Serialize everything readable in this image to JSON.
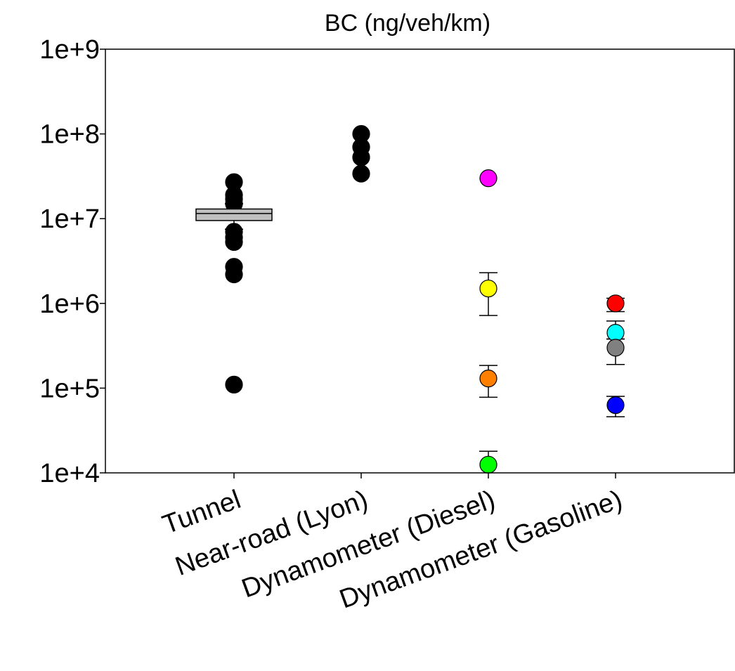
{
  "chart_data": {
    "type": "scatter",
    "title": "BC (ng/veh/km)",
    "xlabel": "",
    "ylabel": "",
    "y_scale": "log",
    "ylim": [
      10000,
      1000000000
    ],
    "y_tick_values": [
      10000,
      100000,
      1000000,
      10000000,
      100000000,
      1000000000
    ],
    "y_tick_labels": [
      "1e+4",
      "1e+5",
      "1e+6",
      "1e+7",
      "1e+8",
      "1e+9"
    ],
    "categories": [
      "Tunnel",
      "Near-road (Lyon)",
      "Dynamometer (Diesel)",
      "Dynamometer (Gasoline)"
    ],
    "grid": false,
    "legend": "none",
    "series": [
      {
        "category": "Tunnel",
        "color": "#000000",
        "values": [
          27000000,
          19000000,
          17000000,
          15000000,
          7000000,
          6000000,
          5300000,
          2700000,
          2200000,
          110000
        ]
      },
      {
        "category": "Tunnel",
        "type": "box",
        "color": "#c0c0c0",
        "q1": 9500000,
        "median": 11500000,
        "q3": 13000000,
        "whisker_low": 7500000,
        "whisker_high": 15000000
      },
      {
        "category": "Near-road (Lyon)",
        "color": "#000000",
        "values": [
          100000000,
          70000000,
          53000000,
          34000000
        ]
      },
      {
        "category": "Dynamometer (Diesel)",
        "points": [
          {
            "value": 30000000,
            "color": "#ff00ff"
          },
          {
            "value": 1500000,
            "err_low": 720000,
            "err_high": 2300000,
            "color": "#ffff00"
          },
          {
            "value": 130000,
            "err_low": 78000,
            "err_high": 185000,
            "color": "#ff8000"
          },
          {
            "value": 12500,
            "err_high": 18000,
            "color": "#00ff00"
          }
        ]
      },
      {
        "category": "Dynamometer (Gasoline)",
        "points": [
          {
            "value": 1000000,
            "err_low": 800000,
            "err_high": 1150000,
            "color": "#ff0000"
          },
          {
            "value": 450000,
            "err_low": 380000,
            "err_high": 620000,
            "color": "#00ffff"
          },
          {
            "value": 300000,
            "err_low": 190000,
            "err_high": 380000,
            "color": "#808080"
          },
          {
            "value": 63000,
            "err_low": 46000,
            "err_high": 80000,
            "color": "#0000ff"
          }
        ]
      }
    ]
  }
}
